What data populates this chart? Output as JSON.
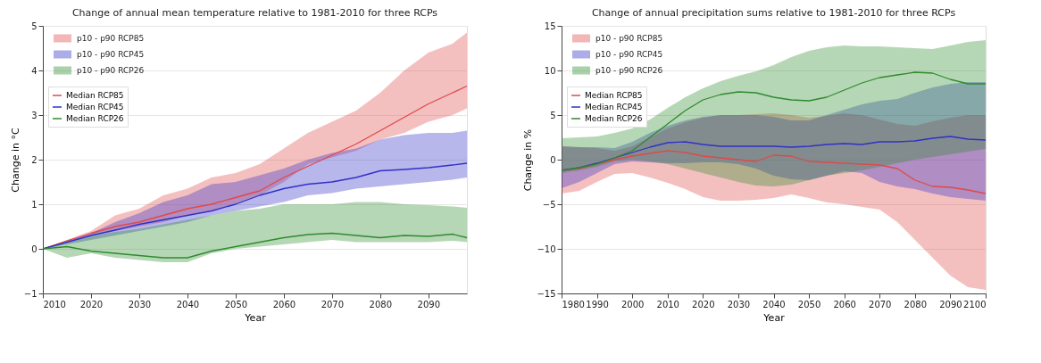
{
  "chart_data": [
    {
      "type": "line",
      "title": "Change of annual mean temperature relative to 1981-2010 for three RCPs",
      "xlabel": "Year",
      "ylabel": "Change in °C",
      "xlim": [
        2010,
        2098
      ],
      "xticks": [
        2010,
        2020,
        2030,
        2040,
        2050,
        2060,
        2070,
        2080,
        2090
      ],
      "ylim": [
        -1,
        5
      ],
      "yticks": [
        {
          "value": -1,
          "label": "−1"
        },
        0,
        1,
        2,
        3,
        4,
        5
      ],
      "grid": "y",
      "legend": "top left",
      "annotations": [
        "p10 - p90 RCP85",
        "p10 - p90 RCP45",
        "p10 - p90 RCP26"
      ],
      "x": [
        2010,
        2015,
        2020,
        2025,
        2030,
        2035,
        2040,
        2045,
        2050,
        2055,
        2060,
        2065,
        2070,
        2075,
        2080,
        2085,
        2090,
        2095,
        2098
      ],
      "series": [
        {
          "type": "line",
          "name": "Median RCP85",
          "color": "#e04848",
          "values": [
            0,
            0.18,
            0.35,
            0.5,
            0.6,
            0.75,
            0.9,
            1.0,
            1.15,
            1.3,
            1.6,
            1.85,
            2.1,
            2.35,
            2.65,
            2.95,
            3.25,
            3.5,
            3.65
          ],
          "lower": [
            0,
            0.15,
            0.3,
            0.4,
            0.5,
            0.6,
            0.75,
            0.85,
            1.0,
            1.2,
            1.5,
            1.9,
            2.05,
            2.2,
            2.45,
            2.6,
            2.85,
            3.0,
            3.15
          ],
          "upper": [
            0,
            0.2,
            0.4,
            0.75,
            0.9,
            1.2,
            1.35,
            1.6,
            1.7,
            1.9,
            2.25,
            2.6,
            2.85,
            3.1,
            3.5,
            4.0,
            4.4,
            4.6,
            4.85
          ]
        },
        {
          "type": "line",
          "name": "Median RCP45",
          "color": "#3030c8",
          "values": [
            0,
            0.15,
            0.3,
            0.42,
            0.55,
            0.65,
            0.75,
            0.85,
            1.0,
            1.2,
            1.35,
            1.45,
            1.5,
            1.6,
            1.75,
            1.78,
            1.82,
            1.88,
            1.92
          ],
          "lower": [
            0,
            0.1,
            0.2,
            0.3,
            0.4,
            0.5,
            0.6,
            0.75,
            0.85,
            0.95,
            1.05,
            1.2,
            1.25,
            1.35,
            1.4,
            1.45,
            1.5,
            1.55,
            1.6
          ],
          "upper": [
            0,
            0.18,
            0.35,
            0.6,
            0.8,
            1.05,
            1.2,
            1.45,
            1.5,
            1.65,
            1.8,
            2.0,
            2.15,
            2.25,
            2.45,
            2.55,
            2.6,
            2.6,
            2.65
          ]
        },
        {
          "type": "line",
          "name": "Median RCP26",
          "color": "#2e8b2e",
          "values": [
            0,
            0.05,
            -0.05,
            -0.1,
            -0.15,
            -0.2,
            -0.2,
            -0.05,
            0.05,
            0.15,
            0.25,
            0.32,
            0.35,
            0.3,
            0.25,
            0.3,
            0.28,
            0.33,
            0.25
          ],
          "lower": [
            0,
            -0.2,
            -0.1,
            -0.2,
            -0.25,
            -0.3,
            -0.3,
            -0.1,
            0.0,
            0.05,
            0.1,
            0.15,
            0.2,
            0.15,
            0.15,
            0.15,
            0.15,
            0.18,
            0.15
          ],
          "upper": [
            0,
            0.15,
            0.3,
            0.38,
            0.45,
            0.55,
            0.65,
            0.75,
            0.85,
            0.9,
            1.0,
            1.0,
            1.0,
            1.05,
            1.05,
            1.0,
            0.98,
            0.95,
            0.92
          ]
        }
      ]
    },
    {
      "type": "line",
      "title": "Change of annual precipitation sums relative to 1981-2010 for three RCPs",
      "xlabel": "Year",
      "ylabel": "Change in %",
      "xlim": [
        1980,
        2100
      ],
      "xticks": [
        1980,
        1990,
        2000,
        2010,
        2020,
        2030,
        2040,
        2050,
        2060,
        2070,
        2080,
        2090,
        2100
      ],
      "ylim": [
        -15,
        15
      ],
      "yticks": [
        {
          "value": -15,
          "label": "−15"
        },
        {
          "value": -10,
          "label": "−10"
        },
        {
          "value": -5,
          "label": "−5"
        },
        0,
        5,
        10,
        15
      ],
      "grid": "y",
      "legend": "top left",
      "annotations": [
        "p10 - p90 RCP85",
        "p10 - p90 RCP45",
        "p10 - p90 RCP26"
      ],
      "x": [
        1980,
        1985,
        1990,
        1995,
        2000,
        2005,
        2010,
        2015,
        2020,
        2025,
        2030,
        2035,
        2040,
        2045,
        2050,
        2055,
        2060,
        2065,
        2070,
        2075,
        2080,
        2085,
        2090,
        2095,
        2100
      ],
      "series": [
        {
          "type": "line",
          "name": "Median RCP85",
          "color": "#e04848",
          "values": [
            -1.2,
            -1.0,
            -0.5,
            0.0,
            0.4,
            0.7,
            1.0,
            0.8,
            0.4,
            0.2,
            0.0,
            -0.2,
            0.5,
            0.4,
            -0.2,
            -0.3,
            -0.4,
            -0.5,
            -0.6,
            -1.0,
            -2.3,
            -3.0,
            -3.1,
            -3.4,
            -3.8
          ],
          "lower": [
            -3.8,
            -3.5,
            -2.5,
            -1.6,
            -1.5,
            -2.0,
            -2.6,
            -3.3,
            -4.2,
            -4.6,
            -4.6,
            -4.5,
            -4.3,
            -3.9,
            -4.3,
            -4.8,
            -5.0,
            -5.3,
            -5.6,
            -7.0,
            -9.0,
            -11.0,
            -13.0,
            -14.3,
            -14.6
          ],
          "upper": [
            1.5,
            1.4,
            1.3,
            1.0,
            1.5,
            2.5,
            3.5,
            4.2,
            4.7,
            5.0,
            5.0,
            5.1,
            5.2,
            5.0,
            4.7,
            4.9,
            5.2,
            5.0,
            4.5,
            4.0,
            3.8,
            4.3,
            4.7,
            5.0,
            5.0
          ]
        },
        {
          "type": "line",
          "name": "Median RCP45",
          "color": "#3030c8",
          "values": [
            -1.2,
            -0.9,
            -0.4,
            0.2,
            0.8,
            1.4,
            1.9,
            2.0,
            1.7,
            1.5,
            1.5,
            1.5,
            1.5,
            1.4,
            1.5,
            1.7,
            1.8,
            1.7,
            2.0,
            2.0,
            2.1,
            2.4,
            2.6,
            2.3,
            2.2
          ],
          "lower": [
            -3.2,
            -2.5,
            -1.5,
            -0.5,
            -0.2,
            -0.3,
            -0.4,
            -0.4,
            -0.3,
            -0.3,
            -0.5,
            -1.0,
            -1.8,
            -2.2,
            -2.3,
            -1.8,
            -1.3,
            -1.5,
            -2.5,
            -3.0,
            -3.3,
            -3.8,
            -4.2,
            -4.4,
            -4.6
          ],
          "upper": [
            1.5,
            1.4,
            1.4,
            1.3,
            2.0,
            3.0,
            3.8,
            4.4,
            4.8,
            5.0,
            5.0,
            5.0,
            4.8,
            4.4,
            4.4,
            5.0,
            5.6,
            6.2,
            6.6,
            6.8,
            7.5,
            8.1,
            8.5,
            8.7,
            8.7
          ]
        },
        {
          "type": "line",
          "name": "Median RCP26",
          "color": "#2e8b2e",
          "values": [
            -1.2,
            -0.9,
            -0.5,
            0.2,
            1.0,
            2.5,
            4.0,
            5.5,
            6.7,
            7.3,
            7.6,
            7.5,
            7.0,
            6.7,
            6.6,
            7.0,
            7.8,
            8.6,
            9.2,
            9.5,
            9.8,
            9.7,
            9.0,
            8.5,
            8.5
          ],
          "lower": [
            -1.5,
            -1.2,
            -0.8,
            -0.2,
            0.0,
            -0.2,
            -0.5,
            -1.0,
            -1.5,
            -2.0,
            -2.5,
            -2.9,
            -3.0,
            -2.8,
            -2.3,
            -1.8,
            -1.5,
            -1.2,
            -0.8,
            -0.4,
            0.0,
            0.3,
            0.6,
            0.9,
            1.2
          ],
          "upper": [
            2.4,
            2.5,
            2.6,
            3.0,
            3.5,
            4.5,
            5.8,
            7.0,
            8.0,
            8.8,
            9.4,
            9.9,
            10.6,
            11.5,
            12.2,
            12.6,
            12.8,
            12.7,
            12.7,
            12.6,
            12.5,
            12.4,
            12.8,
            13.2,
            13.4
          ]
        }
      ]
    }
  ]
}
